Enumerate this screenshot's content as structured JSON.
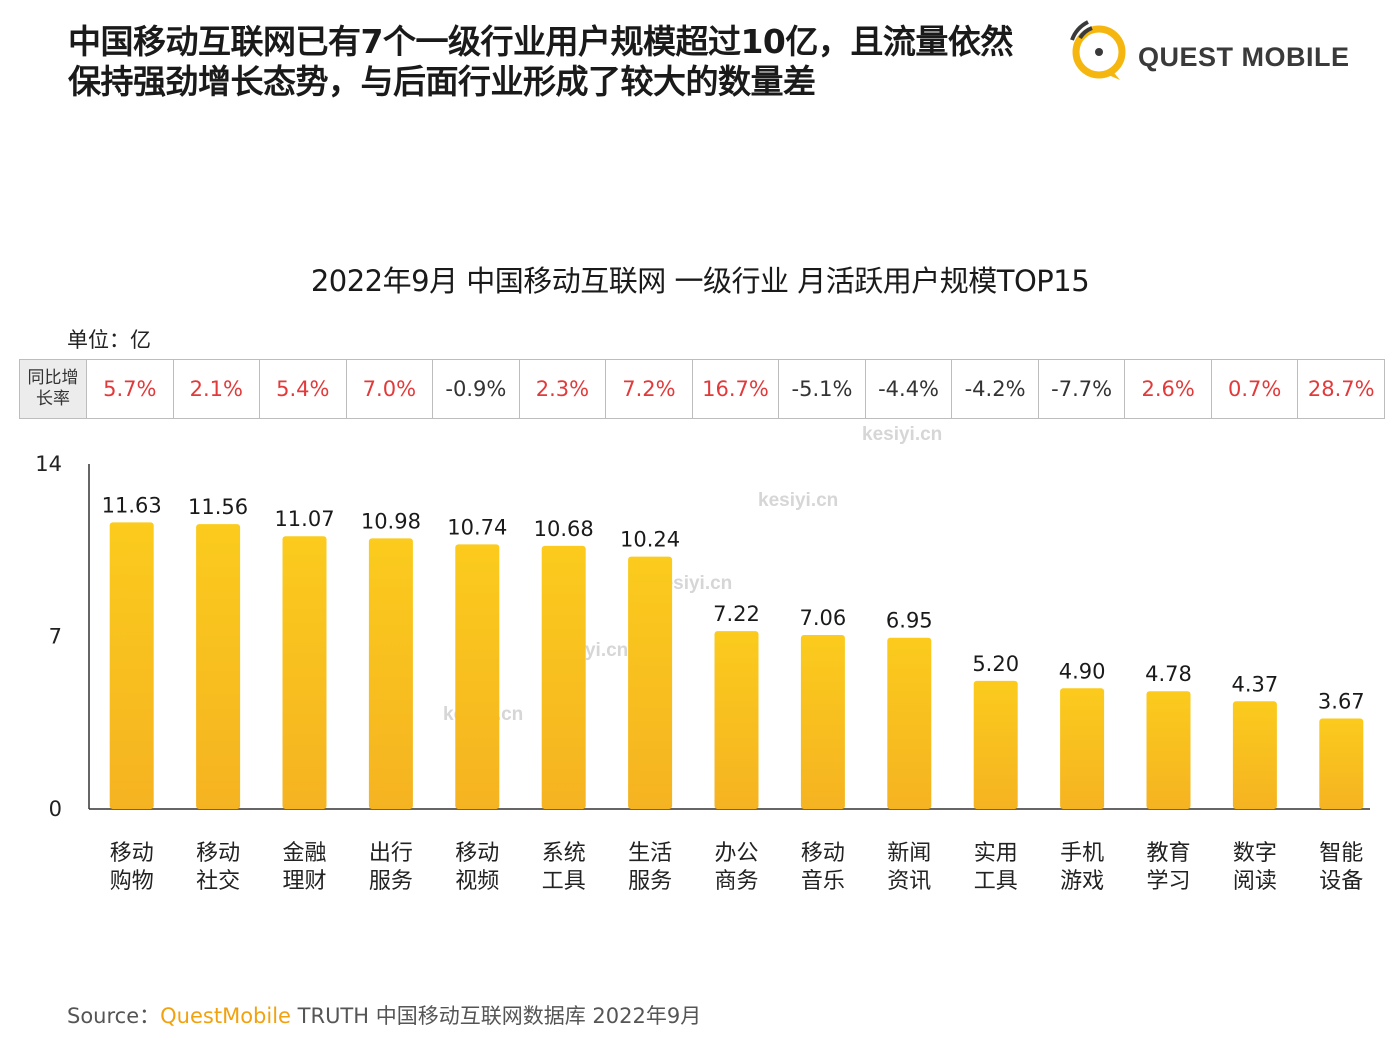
{
  "headline": {
    "line1": "中国移动互联网已有7个一级行业用户规模超过10亿，且流量依然",
    "line2": "保持强劲增长态势，与后面行业形成了较大的数量差"
  },
  "logo": {
    "text": "QUEST MOBILE",
    "icon": "quest-mobile-logo-icon",
    "color": "#f5b70f"
  },
  "unit_label": "单位：亿",
  "yoy": {
    "header": "同比增长率",
    "cells": [
      {
        "text": "5.7%",
        "sign": "pos"
      },
      {
        "text": "2.1%",
        "sign": "pos"
      },
      {
        "text": "5.4%",
        "sign": "pos"
      },
      {
        "text": "7.0%",
        "sign": "pos"
      },
      {
        "text": "-0.9%",
        "sign": "neg"
      },
      {
        "text": "2.3%",
        "sign": "pos"
      },
      {
        "text": "7.2%",
        "sign": "pos"
      },
      {
        "text": "16.7%",
        "sign": "pos"
      },
      {
        "text": "-5.1%",
        "sign": "neg"
      },
      {
        "text": "-4.4%",
        "sign": "neg"
      },
      {
        "text": "-4.2%",
        "sign": "neg"
      },
      {
        "text": "-7.7%",
        "sign": "neg"
      },
      {
        "text": "2.6%",
        "sign": "pos"
      },
      {
        "text": "0.7%",
        "sign": "pos"
      },
      {
        "text": "28.7%",
        "sign": "pos"
      }
    ]
  },
  "chart_data": {
    "type": "bar",
    "title": "2022年9月 中国移动互联网 一级行业 月活跃用户规模TOP15",
    "xlabel": "",
    "ylabel": "",
    "ylim": [
      0,
      14
    ],
    "yticks": [
      0,
      7,
      14
    ],
    "grid": false,
    "categories": [
      [
        "移动",
        "购物"
      ],
      [
        "移动",
        "社交"
      ],
      [
        "金融",
        "理财"
      ],
      [
        "出行",
        "服务"
      ],
      [
        "移动",
        "视频"
      ],
      [
        "系统",
        "工具"
      ],
      [
        "生活",
        "服务"
      ],
      [
        "办公",
        "商务"
      ],
      [
        "移动",
        "音乐"
      ],
      [
        "新闻",
        "资讯"
      ],
      [
        "实用",
        "工具"
      ],
      [
        "手机",
        "游戏"
      ],
      [
        "教育",
        "学习"
      ],
      [
        "数字",
        "阅读"
      ],
      [
        "智能",
        "设备"
      ]
    ],
    "values": [
      11.63,
      11.56,
      11.07,
      10.98,
      10.74,
      10.68,
      10.24,
      7.22,
      7.06,
      6.95,
      5.2,
      4.9,
      4.78,
      4.37,
      3.67
    ],
    "value_labels": [
      "11.63",
      "11.56",
      "11.07",
      "10.98",
      "10.74",
      "10.68",
      "10.24",
      "7.22",
      "7.06",
      "6.95",
      "5.20",
      "4.90",
      "4.78",
      "4.37",
      "3.67"
    ],
    "bar_color_top": "#fbcb1d",
    "bar_color_bottom": "#f5b321"
  },
  "watermark": "kesiyi.cn",
  "source": {
    "prefix": "Source：",
    "brand": "QuestMobile",
    "rest": " TRUTH 中国移动互联网数据库 2022年9月"
  }
}
